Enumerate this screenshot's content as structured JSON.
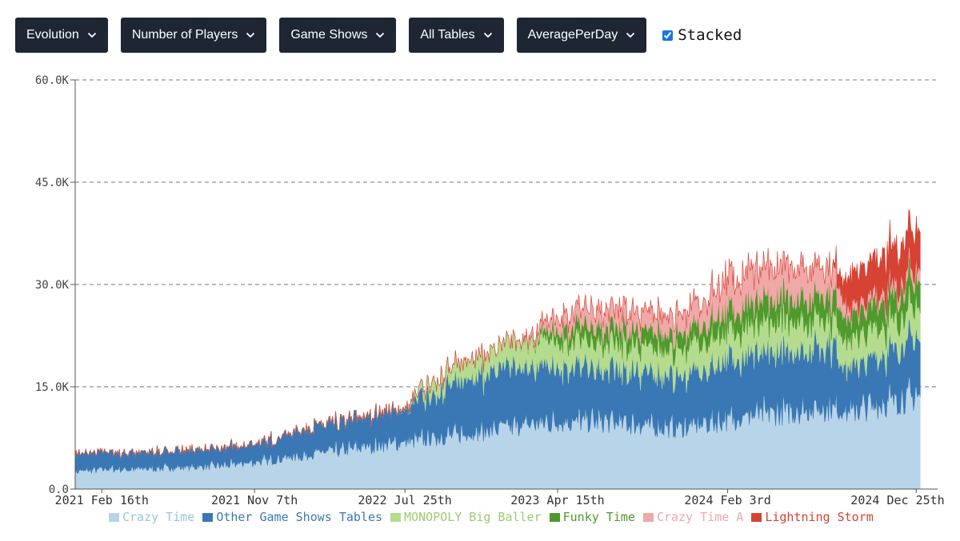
{
  "toolbar": {
    "dropdowns": [
      {
        "label": "Evolution"
      },
      {
        "label": "Number of Players"
      },
      {
        "label": "Game Shows"
      },
      {
        "label": "All Tables"
      },
      {
        "label": "AveragePerDay"
      }
    ],
    "stacked_label": "Stacked",
    "stacked_checked": true,
    "colors": {
      "dropdown_bg": "#1e2634",
      "dropdown_text": "#ffffff"
    }
  },
  "chart_data": {
    "type": "area",
    "stacked": true,
    "title": "",
    "xlabel": "",
    "ylabel": "",
    "ylim": [
      0,
      60000
    ],
    "yticks": [
      0,
      15000,
      30000,
      45000,
      60000
    ],
    "ytick_labels": [
      "0.0",
      "15.0K",
      "30.0K",
      "45.0K",
      "60.0K"
    ],
    "xlim": [
      "2021-01-01",
      "2025-01-31"
    ],
    "xticks": [
      {
        "date": "2021-02-16",
        "label": "2021 Feb 16th"
      },
      {
        "date": "2021-11-07",
        "label": "2021 Nov 7th"
      },
      {
        "date": "2022-07-25",
        "label": "2022 Jul 25th"
      },
      {
        "date": "2023-04-15",
        "label": "2023 Apr 15th"
      },
      {
        "date": "2024-02-03",
        "label": "2024 Feb 3rd"
      },
      {
        "date": "2024-12-25",
        "label": "2024 Dec 25th"
      }
    ],
    "grid": "horizontal-dashed",
    "x": [
      "2021-01",
      "2021-02",
      "2021-03",
      "2021-04",
      "2021-05",
      "2021-06",
      "2021-07",
      "2021-08",
      "2021-09",
      "2021-10",
      "2021-11",
      "2021-12",
      "2022-01",
      "2022-02",
      "2022-03",
      "2022-04",
      "2022-05",
      "2022-06",
      "2022-07",
      "2022-08",
      "2022-09",
      "2022-10",
      "2022-11",
      "2022-12",
      "2023-01",
      "2023-02",
      "2023-03",
      "2023-04",
      "2023-05",
      "2023-06",
      "2023-07",
      "2023-08",
      "2023-09",
      "2023-10",
      "2023-11",
      "2023-12",
      "2024-01",
      "2024-02",
      "2024-03",
      "2024-04",
      "2024-05",
      "2024-06",
      "2024-07",
      "2024-08",
      "2024-09",
      "2024-10",
      "2024-11",
      "2024-12",
      "2025-01"
    ],
    "series": [
      {
        "name": "Crazy Time",
        "color": "#b8d4e8",
        "values": [
          2500,
          2700,
          2900,
          2800,
          2900,
          3000,
          3100,
          3200,
          3300,
          3500,
          3800,
          4100,
          4500,
          4800,
          5200,
          5500,
          5900,
          6200,
          6500,
          6800,
          7200,
          7600,
          7900,
          8200,
          8600,
          9000,
          9300,
          9500,
          9700,
          9800,
          9700,
          9500,
          9300,
          9000,
          8800,
          9000,
          9500,
          10000,
          10400,
          10800,
          11000,
          11200,
          11500,
          11800,
          11000,
          11800,
          12400,
          13000,
          13500
        ]
      },
      {
        "name": "Other Game Shows Tables",
        "color": "#3a78b5",
        "values": [
          2500,
          2500,
          2400,
          2300,
          2400,
          2300,
          2400,
          2400,
          2400,
          2500,
          2600,
          2800,
          3200,
          3600,
          3800,
          4000,
          4200,
          4400,
          4500,
          5000,
          6000,
          7000,
          7500,
          7800,
          8200,
          8500,
          8200,
          8000,
          7600,
          7400,
          7200,
          7400,
          7600,
          7400,
          7200,
          7400,
          7800,
          8200,
          8400,
          8600,
          8800,
          8800,
          8800,
          8800,
          6200,
          6500,
          7000,
          7400,
          8200
        ]
      },
      {
        "name": "MONOPOLY Big Baller",
        "color": "#b5dc8e",
        "values": [
          0,
          0,
          0,
          0,
          0,
          0,
          0,
          0,
          0,
          0,
          0,
          0,
          0,
          0,
          0,
          0,
          0,
          0,
          0,
          200,
          1500,
          2000,
          2500,
          2800,
          3200,
          3500,
          3600,
          3800,
          3800,
          3800,
          3800,
          3800,
          3800,
          3800,
          3800,
          3900,
          4000,
          4200,
          4300,
          4400,
          4400,
          4300,
          4200,
          4000,
          4000,
          4000,
          4200,
          4300,
          4400
        ]
      },
      {
        "name": "Funky Time",
        "color": "#4e9a2c",
        "values": [
          0,
          0,
          0,
          0,
          0,
          0,
          0,
          0,
          0,
          0,
          0,
          0,
          0,
          0,
          0,
          0,
          0,
          0,
          0,
          0,
          0,
          0,
          0,
          0,
          0,
          0,
          200,
          1200,
          1800,
          2000,
          2100,
          2200,
          2200,
          2200,
          2100,
          2300,
          2600,
          2900,
          3000,
          3200,
          3300,
          3300,
          3300,
          3200,
          3200,
          3400,
          3500,
          3600,
          3800
        ]
      },
      {
        "name": "Crazy Time A",
        "color": "#f0a8a8",
        "values": [
          0,
          0,
          0,
          0,
          0,
          0,
          0,
          0,
          0,
          0,
          0,
          0,
          0,
          0,
          0,
          0,
          0,
          0,
          0,
          0,
          0,
          0,
          0,
          0,
          0,
          0,
          500,
          1500,
          2000,
          2400,
          2500,
          2500,
          2500,
          2600,
          2700,
          3000,
          3500,
          4200,
          4500,
          4400,
          4300,
          4200,
          4000,
          3800,
          1200,
          1200,
          1300,
          1400,
          1500
        ]
      },
      {
        "name": "Lightning Storm",
        "color": "#d64233",
        "values": [
          0,
          0,
          0,
          0,
          0,
          0,
          0,
          0,
          0,
          0,
          0,
          0,
          0,
          0,
          0,
          0,
          0,
          0,
          0,
          0,
          0,
          0,
          0,
          0,
          0,
          0,
          0,
          0,
          0,
          0,
          0,
          0,
          0,
          0,
          0,
          0,
          0,
          0,
          0,
          0,
          0,
          0,
          0,
          0,
          4500,
          4800,
          5000,
          5200,
          5500
        ]
      }
    ]
  }
}
